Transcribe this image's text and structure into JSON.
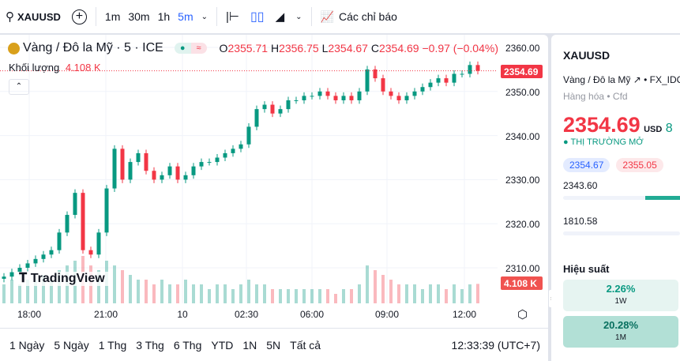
{
  "toolbar": {
    "symbol": "XAUUSD",
    "intervals": [
      "1m",
      "30m",
      "1h",
      "5m"
    ],
    "active_interval": "5m",
    "indicators_label": "Các chỉ báo"
  },
  "legend": {
    "title": "Vàng / Đô la Mỹ · 5 · ICE",
    "o_label": "O",
    "o": "2355.71",
    "h_label": "H",
    "h": "2356.75",
    "l_label": "L",
    "l": "2354.67",
    "c_label": "C",
    "c": "2354.69",
    "change": "−0.97 (−0.04%)",
    "volume_label": "Khối lượng",
    "volume": "4.108 K"
  },
  "price_axis": {
    "labels": [
      "2360.00",
      "2350.00",
      "2340.00",
      "2330.00",
      "2320.00",
      "2310.00"
    ],
    "current_price": "2354.69",
    "current_volume": "4.108 K"
  },
  "time_axis": [
    "18:00",
    "21:00",
    "10",
    "02:30",
    "06:00",
    "09:00",
    "12:00"
  ],
  "watermark": "TradingView",
  "ranges": [
    "1 Ngày",
    "5 Ngày",
    "1 Thg",
    "3 Thg",
    "6 Thg",
    "YTD",
    "1N",
    "5N",
    "Tất cả"
  ],
  "clock": "12:33:39 (UTC+7)",
  "colors": {
    "up": "#089981",
    "down": "#f23645",
    "accent": "#2962ff"
  },
  "chart_data": {
    "type": "candlestick",
    "ylim": [
      2308,
      2362
    ],
    "closes": [
      2308,
      2309,
      2310,
      2311,
      2312,
      2313,
      2314,
      2318,
      2322,
      2327,
      2314,
      2313,
      2318,
      2328,
      2337,
      2330,
      2334,
      2336,
      2332,
      2330,
      2331,
      2333,
      2330,
      2331,
      2333,
      2334,
      2334,
      2335,
      2336,
      2337,
      2338,
      2342,
      2346,
      2347,
      2345,
      2346,
      2348,
      2348,
      2349,
      2349,
      2350,
      2349,
      2348,
      2349,
      2348,
      2350,
      2355,
      2353,
      2350,
      2349,
      2348,
      2349,
      2350,
      2351,
      2352,
      2353,
      2352,
      2354,
      2354,
      2356,
      2354.69
    ],
    "volumes_k": [
      4,
      5,
      4,
      5,
      5,
      6,
      5,
      7,
      8,
      9,
      10,
      8,
      7,
      9,
      8,
      7,
      6,
      5,
      5,
      4,
      5,
      4,
      4,
      5,
      4,
      4,
      3,
      4,
      4,
      3,
      4,
      5,
      4,
      4,
      3,
      3,
      3,
      3,
      3,
      3,
      3,
      3,
      2,
      3,
      3,
      4,
      8,
      7,
      6,
      5,
      4,
      4,
      4,
      3,
      4,
      4,
      3,
      4,
      3,
      4,
      4.108
    ]
  },
  "panel": {
    "symbol": "XAUUSD",
    "name": "Vàng / Đô la Mỹ",
    "exchange": "FX_IDC",
    "category": "Hàng hóa",
    "type": "Cfd",
    "price": "2354.69",
    "currency": "USD",
    "change_partial": "8",
    "status": "THỊ TRƯỜNG MỞ",
    "bid": "2354.67",
    "ask": "2355.05",
    "day_low": "2343.60",
    "year_low": "1810.58",
    "perf_title": "Hiệu suất",
    "perf": [
      {
        "value": "2.26%",
        "period": "1W"
      },
      {
        "value": "20.28%",
        "period": "1M"
      }
    ]
  }
}
